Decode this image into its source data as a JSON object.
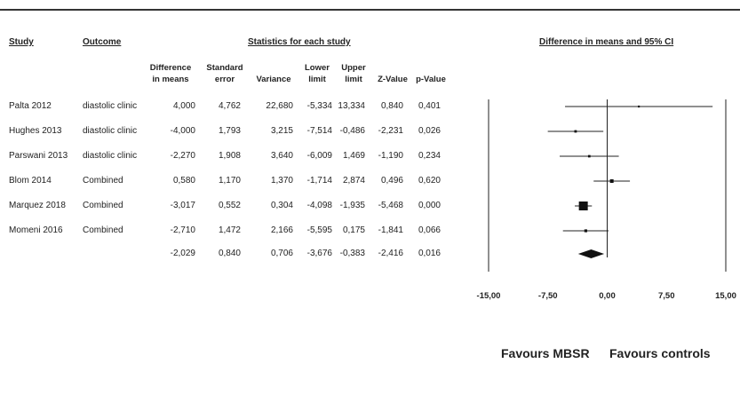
{
  "headers": {
    "study": "Study",
    "outcome": "Outcome",
    "stats": "Statistics for each study",
    "ci": "Difference in means and 95% CI"
  },
  "columns": [
    {
      "l1": "Difference",
      "l2": "in means"
    },
    {
      "l1": "Standard",
      "l2": "error"
    },
    {
      "l1": "",
      "l2": "Variance"
    },
    {
      "l1": "Lower",
      "l2": "limit"
    },
    {
      "l1": "Upper",
      "l2": "limit"
    },
    {
      "l1": "",
      "l2": "Z-Value"
    },
    {
      "l1": "",
      "l2": "p-Value"
    }
  ],
  "rows": [
    {
      "study": "Palta 2012",
      "outcome": "diastolic clinic",
      "vals": [
        "4,000",
        "4,762",
        "22,680",
        "-5,334",
        "13,334",
        "0,840",
        "0,401"
      ]
    },
    {
      "study": "Hughes 2013",
      "outcome": "diastolic clinic",
      "vals": [
        "-4,000",
        "1,793",
        "3,215",
        "-7,514",
        "-0,486",
        "-2,231",
        "0,026"
      ]
    },
    {
      "study": "Parswani 2013",
      "outcome": "diastolic clinic",
      "vals": [
        "-2,270",
        "1,908",
        "3,640",
        "-6,009",
        "1,469",
        "-1,190",
        "0,234"
      ]
    },
    {
      "study": "Blom 2014",
      "outcome": "Combined",
      "vals": [
        "0,580",
        "1,170",
        "1,370",
        "-1,714",
        "2,874",
        "0,496",
        "0,620"
      ]
    },
    {
      "study": "Marquez 2018",
      "outcome": "Combined",
      "vals": [
        "-3,017",
        "0,552",
        "0,304",
        "-4,098",
        "-1,935",
        "-5,468",
        "0,000"
      ]
    },
    {
      "study": "Momeni 2016",
      "outcome": "Combined",
      "vals": [
        "-2,710",
        "1,472",
        "2,166",
        "-5,595",
        "0,175",
        "-1,841",
        "0,066"
      ]
    }
  ],
  "summary": {
    "vals": [
      "-2,029",
      "0,840",
      "0,706",
      "-3,676",
      "-0,383",
      "-2,416",
      "0,016"
    ]
  },
  "favours": {
    "left": "Favours MBSR",
    "right": "Favours controls"
  },
  "chart_data": {
    "type": "forest",
    "xlim": [
      -15,
      15
    ],
    "ticks": [
      -15,
      -7.5,
      0,
      7.5,
      15
    ],
    "tick_labels": [
      "-15,00",
      "-7,50",
      "0,00",
      "7,50",
      "15,00"
    ],
    "studies": [
      {
        "name": "Palta 2012",
        "mean": 4.0,
        "lower": -5.334,
        "upper": 13.334,
        "weight": 0.02
      },
      {
        "name": "Hughes 2013",
        "mean": -4.0,
        "lower": -7.514,
        "upper": -0.486,
        "weight": 0.1
      },
      {
        "name": "Parswani 2013",
        "mean": -2.27,
        "lower": -6.009,
        "upper": 1.469,
        "weight": 0.09
      },
      {
        "name": "Blom 2014",
        "mean": 0.58,
        "lower": -1.714,
        "upper": 2.874,
        "weight": 0.25
      },
      {
        "name": "Marquez 2018",
        "mean": -3.017,
        "lower": -4.098,
        "upper": -1.935,
        "weight": 1.0
      },
      {
        "name": "Momeni 2016",
        "mean": -2.71,
        "lower": -5.595,
        "upper": 0.175,
        "weight": 0.15
      }
    ],
    "summary": {
      "mean": -2.029,
      "lower": -3.676,
      "upper": -0.383
    }
  }
}
